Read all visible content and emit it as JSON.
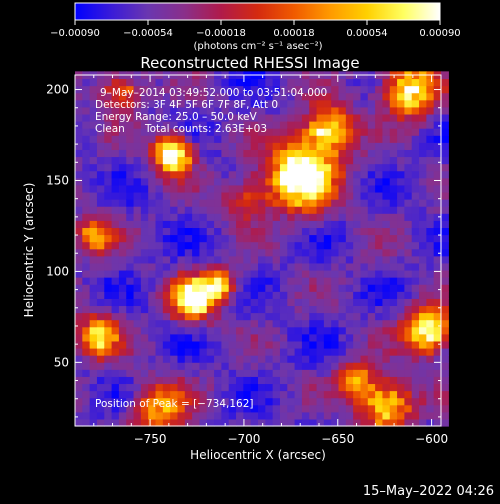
{
  "chart_data": {
    "type": "heatmap",
    "title": "Reconstructed RHESSI Image",
    "xlabel": "Heliocentric X (arcsec)",
    "ylabel": "Heliocentric Y (arcsec)",
    "xlim": [
      -790,
      -595
    ],
    "ylim": [
      15,
      208
    ],
    "xticks": [
      -750,
      -700,
      -650,
      -600
    ],
    "xtick_labels": [
      "−750",
      "−700",
      "−650",
      "−600"
    ],
    "yticks": [
      50,
      100,
      150,
      200
    ],
    "ytick_labels": [
      "50",
      "100",
      "150",
      "200"
    ],
    "colorbar": {
      "range": [
        -0.0009,
        0.0009
      ],
      "ticks": [
        -0.0009,
        -0.00054,
        -0.00018,
        0.00018,
        0.00054,
        0.0009
      ],
      "tick_labels": [
        "−0.00090",
        "−0.00054",
        "−0.00018",
        "0.00018",
        "0.00054",
        "0.00090"
      ],
      "units": "(photons cm⁻² s⁻¹ asec⁻²)",
      "colormap": [
        "#0000ff",
        "#3a1bd8",
        "#6a36b0",
        "#8a2f8a",
        "#b01a4a",
        "#d42a10",
        "#f05a00",
        "#ff9a00",
        "#ffd000",
        "#ffff60",
        "#ffffff"
      ]
    },
    "annotations": {
      "time_range": "9–May–2014 03:49:52.000 to 03:51:04.000",
      "detectors": "Detectors: 3F 4F 5F 6F 7F 8F, Att 0",
      "energy_range": "Energy Range: 25.0 – 50.0 keV",
      "method": "Clean",
      "total_counts": "Total counts: 2.63E+03",
      "peak": "Position of Peak = [−734,162]"
    },
    "sources": [
      {
        "x": -738,
        "y": 165,
        "sigma": 7,
        "intensity": 1.0
      },
      {
        "x": -670,
        "y": 153,
        "sigma": 13,
        "intensity": 0.95
      },
      {
        "x": -655,
        "y": 178,
        "sigma": 9,
        "intensity": 0.75
      },
      {
        "x": -727,
        "y": 85,
        "sigma": 8,
        "intensity": 0.9
      },
      {
        "x": -713,
        "y": 93,
        "sigma": 6,
        "intensity": 0.6
      },
      {
        "x": -602,
        "y": 68,
        "sigma": 9,
        "intensity": 0.85
      },
      {
        "x": -624,
        "y": 27,
        "sigma": 10,
        "intensity": 0.75
      },
      {
        "x": -612,
        "y": 200,
        "sigma": 10,
        "intensity": 0.8
      },
      {
        "x": -778,
        "y": 65,
        "sigma": 8,
        "intensity": 0.65
      },
      {
        "x": -745,
        "y": 25,
        "sigma": 10,
        "intensity": 0.55
      },
      {
        "x": -780,
        "y": 120,
        "sigma": 7,
        "intensity": 0.55
      },
      {
        "x": -765,
        "y": 200,
        "sigma": 8,
        "intensity": 0.5
      },
      {
        "x": -700,
        "y": 140,
        "sigma": 8,
        "intensity": 0.35
      },
      {
        "x": -640,
        "y": 40,
        "sigma": 7,
        "intensity": 0.5
      }
    ]
  },
  "footer": {
    "date": "15–May–2022 04:26"
  }
}
